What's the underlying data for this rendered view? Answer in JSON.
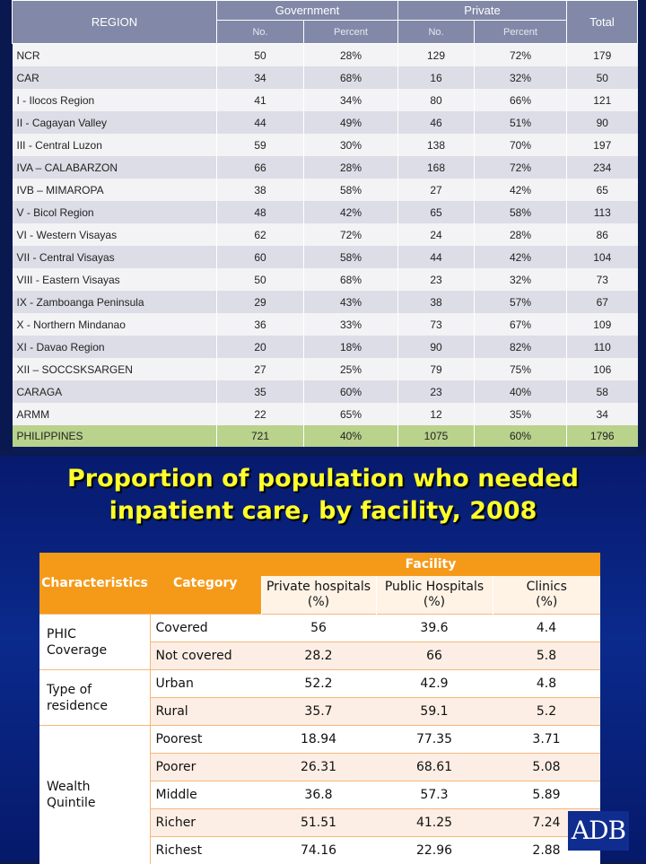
{
  "regional_table": {
    "headers": {
      "region": "REGION",
      "government": "Government",
      "private": "Private",
      "total": "Total",
      "no": "No.",
      "percent": "Percent"
    },
    "rows": [
      {
        "region": "NCR",
        "gov_no": "50",
        "gov_pct": "28%",
        "priv_no": "129",
        "priv_pct": "72%",
        "total": "179"
      },
      {
        "region": "CAR",
        "gov_no": "34",
        "gov_pct": "68%",
        "priv_no": "16",
        "priv_pct": "32%",
        "total": "50"
      },
      {
        "region": "I - Ilocos Region",
        "gov_no": "41",
        "gov_pct": "34%",
        "priv_no": "80",
        "priv_pct": "66%",
        "total": "121"
      },
      {
        "region": "II - Cagayan Valley",
        "gov_no": "44",
        "gov_pct": "49%",
        "priv_no": "46",
        "priv_pct": "51%",
        "total": "90"
      },
      {
        "region": "III - Central Luzon",
        "gov_no": "59",
        "gov_pct": "30%",
        "priv_no": "138",
        "priv_pct": "70%",
        "total": "197"
      },
      {
        "region": "IVA – CALABARZON",
        "gov_no": "66",
        "gov_pct": "28%",
        "priv_no": "168",
        "priv_pct": "72%",
        "total": "234"
      },
      {
        "region": "IVB – MIMAROPA",
        "gov_no": "38",
        "gov_pct": "58%",
        "priv_no": "27",
        "priv_pct": "42%",
        "total": "65"
      },
      {
        "region": "V - Bicol Region",
        "gov_no": "48",
        "gov_pct": "42%",
        "priv_no": "65",
        "priv_pct": "58%",
        "total": "113"
      },
      {
        "region": "VI - Western Visayas",
        "gov_no": "62",
        "gov_pct": "72%",
        "priv_no": "24",
        "priv_pct": "28%",
        "total": "86"
      },
      {
        "region": "VII - Central Visayas",
        "gov_no": "60",
        "gov_pct": "58%",
        "priv_no": "44",
        "priv_pct": "42%",
        "total": "104"
      },
      {
        "region": "VIII - Eastern Visayas",
        "gov_no": "50",
        "gov_pct": "68%",
        "priv_no": "23",
        "priv_pct": "32%",
        "total": "73"
      },
      {
        "region": "IX - Zamboanga Peninsula",
        "gov_no": "29",
        "gov_pct": "43%",
        "priv_no": "38",
        "priv_pct": "57%",
        "total": "67"
      },
      {
        "region": "X - Northern Mindanao",
        "gov_no": "36",
        "gov_pct": "33%",
        "priv_no": "73",
        "priv_pct": "67%",
        "total": "109"
      },
      {
        "region": "XI - Davao Region",
        "gov_no": "20",
        "gov_pct": "18%",
        "priv_no": "90",
        "priv_pct": "82%",
        "total": "110"
      },
      {
        "region": "XII – SOCCSKSARGEN",
        "gov_no": "27",
        "gov_pct": "25%",
        "priv_no": "79",
        "priv_pct": "75%",
        "total": "106"
      },
      {
        "region": "CARAGA",
        "gov_no": "35",
        "gov_pct": "60%",
        "priv_no": "23",
        "priv_pct": "40%",
        "total": "58"
      },
      {
        "region": "ARMM",
        "gov_no": "22",
        "gov_pct": "65%",
        "priv_no": "12",
        "priv_pct": "35%",
        "total": "34"
      }
    ],
    "total_row": {
      "region": "PHILIPPINES",
      "gov_no": "721",
      "gov_pct": "40%",
      "priv_no": "1075",
      "priv_pct": "60%",
      "total": "1796"
    }
  },
  "inpatient_slide": {
    "title_line1": "Proportion of population who needed",
    "title_line2": "inpatient care, by facility, 2008",
    "headers": {
      "characteristics": "Characteristics",
      "category": "Category",
      "facility": "Facility",
      "private_hospitals": "Private hospitals",
      "public_hospitals": "Public Hospitals",
      "clinics": "Clinics",
      "unit": "(%)"
    },
    "groups": [
      {
        "label_line1": "PHIC",
        "label_line2": "Coverage",
        "rows": [
          {
            "category": "Covered",
            "private": "56",
            "public": "39.6",
            "clinics": "4.4"
          },
          {
            "category": "Not covered",
            "private": "28.2",
            "public": "66",
            "clinics": "5.8"
          }
        ]
      },
      {
        "label_line1": "Type of",
        "label_line2": "residence",
        "rows": [
          {
            "category": "Urban",
            "private": "52.2",
            "public": "42.9",
            "clinics": "4.8"
          },
          {
            "category": "Rural",
            "private": "35.7",
            "public": "59.1",
            "clinics": "5.2"
          }
        ]
      },
      {
        "label_line1": "Wealth",
        "label_line2": "Quintile",
        "rows": [
          {
            "category": "Poorest",
            "private": "18.94",
            "public": "77.35",
            "clinics": "3.71"
          },
          {
            "category": "Poorer",
            "private": "26.31",
            "public": "68.61",
            "clinics": "5.08"
          },
          {
            "category": "Middle",
            "private": "36.8",
            "public": "57.3",
            "clinics": "5.89"
          },
          {
            "category": "Richer",
            "private": "51.51",
            "public": "41.25",
            "clinics": "7.24"
          },
          {
            "category": "Richest",
            "private": "74.16",
            "public": "22.96",
            "clinics": "2.88"
          }
        ]
      }
    ],
    "logo_text": "ADB"
  },
  "colors": {
    "table_header": "#8289a8",
    "total_row": "#b9d28c",
    "orange_header": "#f59a18",
    "title_yellow": "#ffff2a",
    "slide_blue": "#0a2a8c"
  }
}
